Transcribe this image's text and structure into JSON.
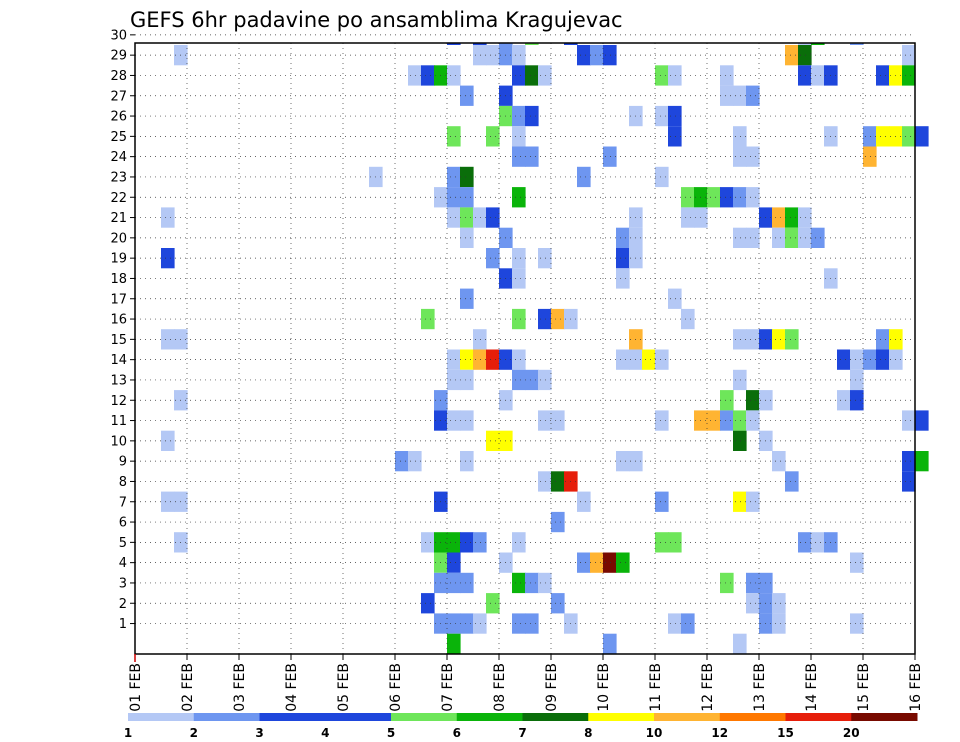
{
  "chart_data": {
    "type": "heatmap",
    "title": "GEFS 6hr padavine po ansamblima Kragujevac",
    "xlabel": "",
    "ylabel": "",
    "x_ticks": [
      "01 FEB",
      "02 FEB",
      "03 FEB",
      "04 FEB",
      "05 FEB",
      "06 FEB",
      "07 FEB",
      "08 FEB",
      "09 FEB",
      "10 FEB",
      "11 FEB",
      "12 FEB",
      "13 FEB",
      "14 FEB",
      "15 FEB",
      "16 FEB"
    ],
    "x_unit": "6-hour steps from 01 FEB 00Z",
    "x_range": [
      0,
      60
    ],
    "members": [
      1,
      2,
      3,
      4,
      5,
      6,
      7,
      8,
      9,
      10,
      11,
      12,
      13,
      14,
      15,
      16,
      17,
      18,
      19,
      20,
      21,
      22,
      23,
      24,
      25,
      26,
      27,
      28,
      29,
      30
    ],
    "legend": {
      "levels": [
        1,
        2,
        3,
        4,
        5,
        6,
        7,
        8,
        10,
        12,
        15,
        20
      ],
      "colors": [
        "#b4c8f5",
        "#6e96f0",
        "#1e46dc",
        "#1e46dc",
        "#6ee65a",
        "#0ab40a",
        "#0a6e0a",
        "#ffff00",
        "#ffb432",
        "#ff7800",
        "#e61e0a",
        "#780a00"
      ]
    },
    "cells": [
      [
        30,
        24,
        3
      ],
      [
        30,
        26,
        3
      ],
      [
        30,
        28,
        2
      ],
      [
        30,
        30,
        5
      ],
      [
        30,
        33,
        3
      ],
      [
        30,
        51,
        1
      ],
      [
        30,
        52,
        6
      ],
      [
        30,
        55,
        2
      ],
      [
        29,
        3,
        1
      ],
      [
        29,
        26,
        1
      ],
      [
        29,
        27,
        1
      ],
      [
        29,
        28,
        2
      ],
      [
        29,
        29,
        1
      ],
      [
        29,
        34,
        3
      ],
      [
        29,
        35,
        2
      ],
      [
        29,
        36,
        3
      ],
      [
        29,
        50,
        10
      ],
      [
        29,
        51,
        7
      ],
      [
        29,
        59,
        1
      ],
      [
        28,
        21,
        1
      ],
      [
        28,
        22,
        3
      ],
      [
        28,
        23,
        6
      ],
      [
        28,
        24,
        1
      ],
      [
        28,
        29,
        3
      ],
      [
        28,
        30,
        7
      ],
      [
        28,
        31,
        1
      ],
      [
        28,
        40,
        5
      ],
      [
        28,
        41,
        1
      ],
      [
        28,
        45,
        1
      ],
      [
        28,
        51,
        3
      ],
      [
        28,
        52,
        1
      ],
      [
        28,
        53,
        3
      ],
      [
        28,
        57,
        3
      ],
      [
        28,
        58,
        8
      ],
      [
        28,
        59,
        6
      ],
      [
        27,
        25,
        2
      ],
      [
        27,
        28,
        3
      ],
      [
        27,
        45,
        1
      ],
      [
        27,
        46,
        1
      ],
      [
        27,
        47,
        2
      ],
      [
        26,
        28,
        5
      ],
      [
        26,
        29,
        2
      ],
      [
        26,
        30,
        3
      ],
      [
        26,
        38,
        1
      ],
      [
        26,
        40,
        1
      ],
      [
        26,
        41,
        3
      ],
      [
        25,
        24,
        5
      ],
      [
        25,
        27,
        5
      ],
      [
        25,
        29,
        1
      ],
      [
        25,
        41,
        3
      ],
      [
        25,
        46,
        1
      ],
      [
        25,
        53,
        1
      ],
      [
        25,
        56,
        2
      ],
      [
        25,
        57,
        8
      ],
      [
        25,
        58,
        8
      ],
      [
        25,
        59,
        5
      ],
      [
        25,
        60,
        3
      ],
      [
        24,
        29,
        2
      ],
      [
        24,
        30,
        2
      ],
      [
        24,
        36,
        2
      ],
      [
        24,
        46,
        1
      ],
      [
        24,
        47,
        1
      ],
      [
        24,
        56,
        10
      ],
      [
        23,
        18,
        1
      ],
      [
        23,
        24,
        2
      ],
      [
        23,
        25,
        7
      ],
      [
        23,
        34,
        2
      ],
      [
        23,
        40,
        1
      ],
      [
        22,
        23,
        1
      ],
      [
        22,
        24,
        2
      ],
      [
        22,
        25,
        2
      ],
      [
        22,
        29,
        6
      ],
      [
        22,
        42,
        5
      ],
      [
        22,
        43,
        6
      ],
      [
        22,
        44,
        5
      ],
      [
        22,
        45,
        3
      ],
      [
        22,
        46,
        2
      ],
      [
        22,
        47,
        1
      ],
      [
        21,
        2,
        1
      ],
      [
        21,
        24,
        1
      ],
      [
        21,
        25,
        5
      ],
      [
        21,
        26,
        1
      ],
      [
        21,
        27,
        3
      ],
      [
        21,
        38,
        1
      ],
      [
        21,
        42,
        1
      ],
      [
        21,
        43,
        1
      ],
      [
        21,
        48,
        3
      ],
      [
        21,
        49,
        10
      ],
      [
        21,
        50,
        6
      ],
      [
        21,
        51,
        1
      ],
      [
        20,
        25,
        1
      ],
      [
        20,
        28,
        2
      ],
      [
        20,
        37,
        2
      ],
      [
        20,
        38,
        1
      ],
      [
        20,
        46,
        1
      ],
      [
        20,
        47,
        1
      ],
      [
        20,
        49,
        1
      ],
      [
        20,
        50,
        5
      ],
      [
        20,
        51,
        1
      ],
      [
        20,
        52,
        2
      ],
      [
        19,
        2,
        3
      ],
      [
        19,
        27,
        2
      ],
      [
        19,
        29,
        1
      ],
      [
        19,
        31,
        1
      ],
      [
        19,
        37,
        3
      ],
      [
        19,
        38,
        1
      ],
      [
        18,
        28,
        3
      ],
      [
        18,
        29,
        1
      ],
      [
        18,
        37,
        1
      ],
      [
        18,
        53,
        1
      ],
      [
        17,
        25,
        2
      ],
      [
        17,
        41,
        1
      ],
      [
        16,
        22,
        5
      ],
      [
        16,
        29,
        5
      ],
      [
        16,
        31,
        3
      ],
      [
        16,
        32,
        10
      ],
      [
        16,
        33,
        1
      ],
      [
        16,
        42,
        1
      ],
      [
        15,
        2,
        1
      ],
      [
        15,
        3,
        1
      ],
      [
        15,
        26,
        1
      ],
      [
        15,
        38,
        10
      ],
      [
        15,
        46,
        1
      ],
      [
        15,
        47,
        1
      ],
      [
        15,
        48,
        3
      ],
      [
        15,
        49,
        8
      ],
      [
        15,
        50,
        5
      ],
      [
        15,
        57,
        2
      ],
      [
        15,
        58,
        8
      ],
      [
        14,
        24,
        1
      ],
      [
        14,
        25,
        8
      ],
      [
        14,
        26,
        10
      ],
      [
        14,
        27,
        15
      ],
      [
        14,
        28,
        3
      ],
      [
        14,
        29,
        1
      ],
      [
        14,
        37,
        1
      ],
      [
        14,
        38,
        1
      ],
      [
        14,
        39,
        8
      ],
      [
        14,
        40,
        1
      ],
      [
        14,
        54,
        3
      ],
      [
        14,
        55,
        1
      ],
      [
        14,
        56,
        2
      ],
      [
        14,
        57,
        3
      ],
      [
        14,
        58,
        1
      ],
      [
        13,
        24,
        1
      ],
      [
        13,
        25,
        1
      ],
      [
        13,
        29,
        2
      ],
      [
        13,
        30,
        2
      ],
      [
        13,
        31,
        1
      ],
      [
        13,
        46,
        1
      ],
      [
        13,
        55,
        1
      ],
      [
        12,
        3,
        1
      ],
      [
        12,
        23,
        2
      ],
      [
        12,
        28,
        1
      ],
      [
        12,
        45,
        5
      ],
      [
        12,
        47,
        7
      ],
      [
        12,
        48,
        1
      ],
      [
        12,
        54,
        1
      ],
      [
        12,
        55,
        3
      ],
      [
        11,
        23,
        3
      ],
      [
        11,
        24,
        1
      ],
      [
        11,
        25,
        1
      ],
      [
        11,
        31,
        1
      ],
      [
        11,
        32,
        1
      ],
      [
        11,
        40,
        1
      ],
      [
        11,
        43,
        10
      ],
      [
        11,
        44,
        10
      ],
      [
        11,
        45,
        2
      ],
      [
        11,
        46,
        5
      ],
      [
        11,
        47,
        1
      ],
      [
        11,
        59,
        1
      ],
      [
        11,
        60,
        3
      ],
      [
        10,
        2,
        1
      ],
      [
        10,
        27,
        8
      ],
      [
        10,
        28,
        8
      ],
      [
        10,
        46,
        7
      ],
      [
        10,
        48,
        1
      ],
      [
        9,
        20,
        2
      ],
      [
        9,
        21,
        1
      ],
      [
        9,
        25,
        1
      ],
      [
        9,
        37,
        1
      ],
      [
        9,
        38,
        1
      ],
      [
        9,
        49,
        1
      ],
      [
        9,
        59,
        3
      ],
      [
        9,
        60,
        6
      ],
      [
        8,
        31,
        1
      ],
      [
        8,
        32,
        7
      ],
      [
        8,
        33,
        15
      ],
      [
        8,
        50,
        2
      ],
      [
        8,
        59,
        3
      ],
      [
        7,
        2,
        1
      ],
      [
        7,
        3,
        1
      ],
      [
        7,
        23,
        3
      ],
      [
        7,
        34,
        1
      ],
      [
        7,
        40,
        2
      ],
      [
        7,
        46,
        8
      ],
      [
        7,
        47,
        1
      ],
      [
        6,
        32,
        2
      ],
      [
        5,
        3,
        1
      ],
      [
        5,
        22,
        1
      ],
      [
        5,
        23,
        6
      ],
      [
        5,
        24,
        6
      ],
      [
        5,
        25,
        3
      ],
      [
        5,
        26,
        2
      ],
      [
        5,
        29,
        1
      ],
      [
        5,
        40,
        5
      ],
      [
        5,
        41,
        5
      ],
      [
        5,
        51,
        2
      ],
      [
        5,
        52,
        1
      ],
      [
        5,
        53,
        2
      ],
      [
        4,
        23,
        5
      ],
      [
        4,
        24,
        3
      ],
      [
        4,
        28,
        1
      ],
      [
        4,
        34,
        2
      ],
      [
        4,
        35,
        10
      ],
      [
        4,
        36,
        20
      ],
      [
        4,
        37,
        6
      ],
      [
        4,
        55,
        1
      ],
      [
        3,
        23,
        2
      ],
      [
        3,
        24,
        2
      ],
      [
        3,
        25,
        2
      ],
      [
        3,
        29,
        6
      ],
      [
        3,
        30,
        2
      ],
      [
        3,
        31,
        1
      ],
      [
        3,
        45,
        5
      ],
      [
        3,
        47,
        2
      ],
      [
        3,
        48,
        2
      ],
      [
        2,
        22,
        3
      ],
      [
        2,
        27,
        5
      ],
      [
        2,
        32,
        2
      ],
      [
        2,
        47,
        1
      ],
      [
        2,
        48,
        2
      ],
      [
        2,
        49,
        1
      ],
      [
        1,
        23,
        2
      ],
      [
        1,
        24,
        2
      ],
      [
        1,
        25,
        2
      ],
      [
        1,
        26,
        1
      ],
      [
        1,
        29,
        2
      ],
      [
        1,
        30,
        2
      ],
      [
        1,
        33,
        1
      ],
      [
        1,
        41,
        1
      ],
      [
        1,
        42,
        2
      ],
      [
        1,
        48,
        2
      ],
      [
        1,
        49,
        1
      ],
      [
        1,
        55,
        1
      ],
      [
        0,
        24,
        6
      ],
      [
        0,
        36,
        2
      ],
      [
        0,
        46,
        1
      ]
    ]
  }
}
